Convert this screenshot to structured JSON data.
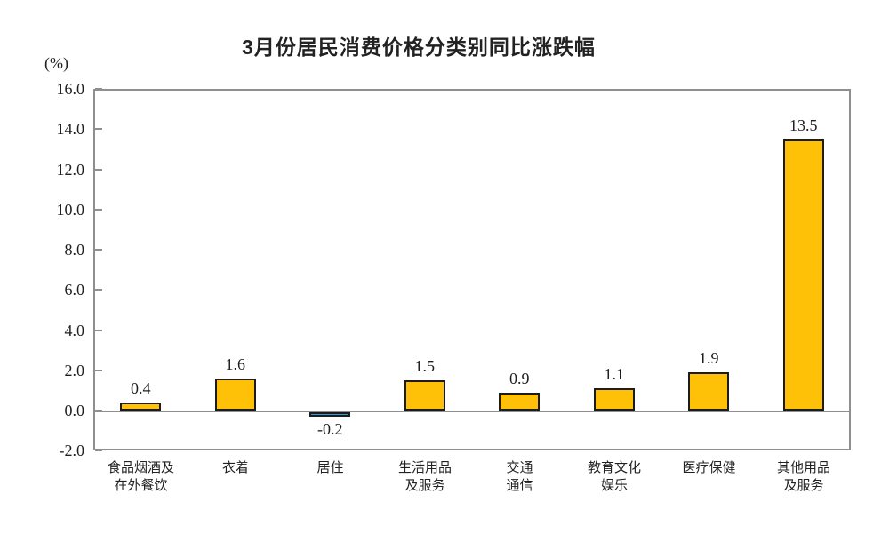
{
  "chart": {
    "title": "3月份居民消费价格分类别同比涨跌幅",
    "unit_label": "(%)"
  },
  "chart_data": {
    "type": "bar",
    "title": "3月份居民消费价格分类别同比涨跌幅",
    "ylabel": "(%)",
    "xlabel": "",
    "categories": [
      "食品烟酒及\n在外餐饮",
      "衣着",
      "居住",
      "生活用品\n及服务",
      "交通\n通信",
      "教育文化\n娱乐",
      "医疗保健",
      "其他用品\n及服务"
    ],
    "values": [
      0.4,
      1.6,
      -0.2,
      1.5,
      0.9,
      1.1,
      1.9,
      13.5
    ],
    "value_labels": [
      "0.4",
      "1.6",
      "-0.2",
      "1.5",
      "0.9",
      "1.1",
      "1.9",
      "13.5"
    ],
    "yticks": [
      16.0,
      14.0,
      12.0,
      10.0,
      8.0,
      6.0,
      4.0,
      2.0,
      0.0,
      -2.0
    ],
    "ytick_labels": [
      "16.0",
      "14.0",
      "12.0",
      "10.0",
      "8.0",
      "6.0",
      "4.0",
      "2.0",
      "0.0",
      "-2.0"
    ],
    "ylim": [
      -2.0,
      16.0
    ],
    "grid": false,
    "legend": false,
    "colors": {
      "positive_bar": "#FFC008",
      "negative_bar": "#2B9CD8",
      "bar_border": "#1c1c1c",
      "axis": "#8f8f8f",
      "text": "#1f1f1f"
    }
  }
}
